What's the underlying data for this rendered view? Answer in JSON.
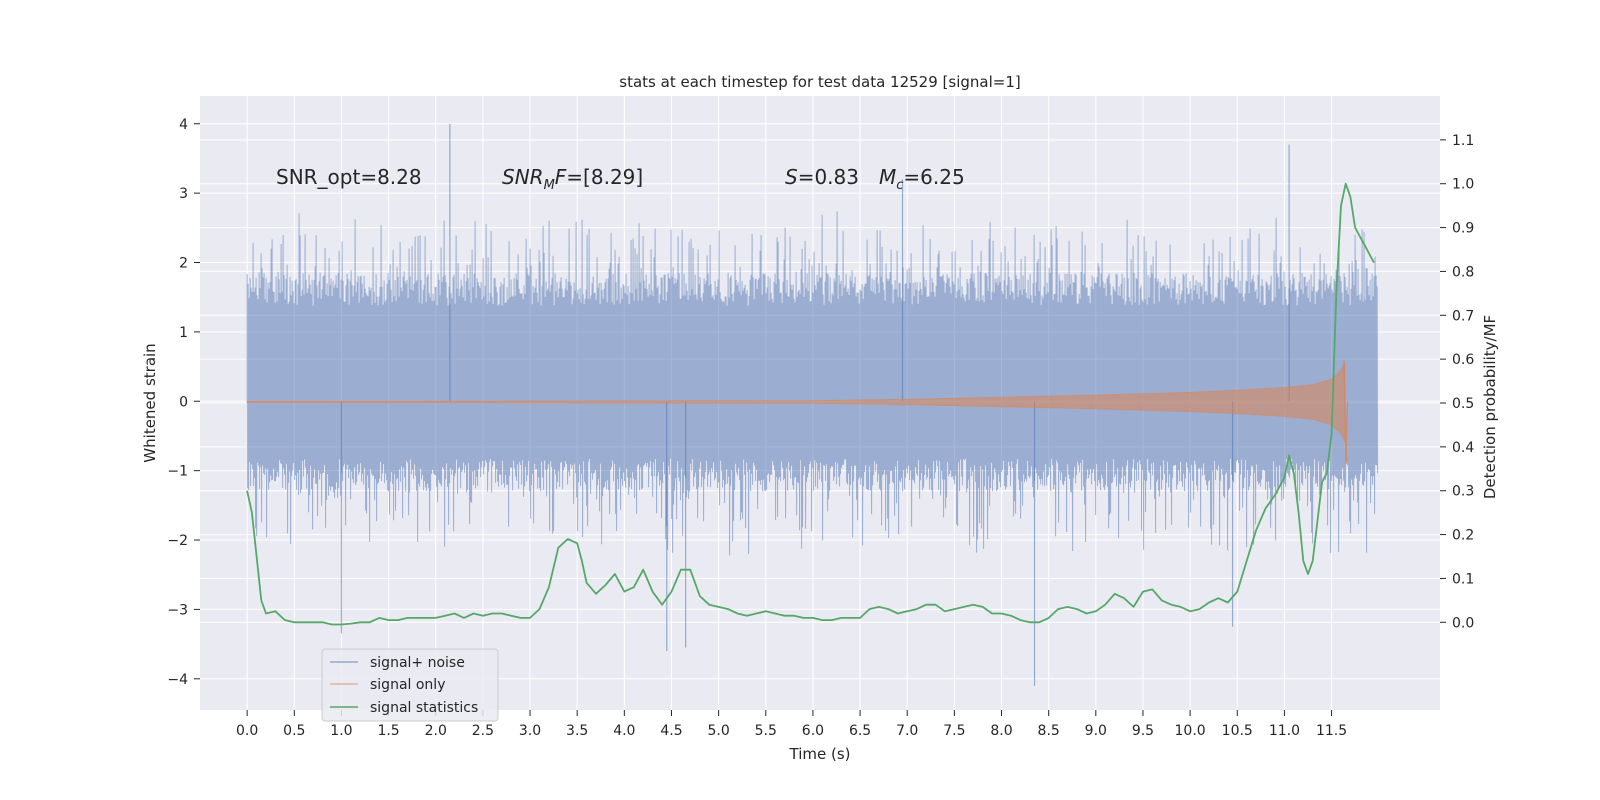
{
  "chart_data": {
    "type": "line",
    "title": "stats at each timestep for test data 12529 [signal=1]",
    "xlabel": "Time (s)",
    "ylabel": "Whitened strain",
    "y2label": "Detection probability/MF",
    "xlim": [
      -0.5,
      12.65
    ],
    "ylim": [
      -4.45,
      4.4
    ],
    "y2lim": [
      -0.2,
      1.2
    ],
    "xticks": [
      "0.0",
      "0.5",
      "1.0",
      "1.5",
      "2.0",
      "2.5",
      "3.0",
      "3.5",
      "4.0",
      "4.5",
      "5.0",
      "5.5",
      "6.0",
      "6.5",
      "7.0",
      "7.5",
      "8.0",
      "8.5",
      "9.0",
      "9.5",
      "10.0",
      "10.5",
      "11.0",
      "11.5"
    ],
    "yticks": [
      "4",
      "3",
      "2",
      "1",
      "0",
      "−1",
      "−2",
      "−3",
      "−4"
    ],
    "y2ticks": [
      "1.1",
      "1.0",
      "0.9",
      "0.8",
      "0.7",
      "0.6",
      "0.5",
      "0.4",
      "0.3",
      "0.2",
      "0.1",
      "0.0"
    ],
    "annotations": {
      "snr_opt": "SNR_opt=8.28",
      "snr_mf_sym": "SNR",
      "snr_mf_sub": "M",
      "snr_mf_rest": "F=[8.29]",
      "s_sym": "S",
      "s_val": "=0.83",
      "mc_sym": "M",
      "mc_sub": "c",
      "mc_val": "=6.25"
    },
    "legend": {
      "location": "lower-left",
      "entries": [
        "signal+ noise",
        "signal only",
        "signal statistics"
      ]
    },
    "colors": {
      "noise": "#4c72b0",
      "signal": "#dd8452",
      "stats": "#55a868",
      "background": "#eaeaf2",
      "grid": "#ffffff"
    },
    "series": [
      {
        "name": "signal+ noise",
        "axis": "left",
        "t_range": [
          0.0,
          11.99
        ],
        "typical_amplitude": [
          -1.3,
          1.85
        ],
        "peaks": [
          [
            2.15,
            4.0
          ],
          [
            11.05,
            3.7
          ],
          [
            6.95,
            3.2
          ],
          [
            8.35,
            -4.1
          ],
          [
            4.45,
            -3.6
          ],
          [
            4.65,
            -3.55
          ],
          [
            1.0,
            -3.35
          ],
          [
            10.45,
            -3.25
          ]
        ]
      },
      {
        "name": "signal only",
        "axis": "left",
        "t_range": [
          0.0,
          11.67
        ],
        "envelope_t": [
          0.0,
          6.0,
          7.0,
          8.0,
          9.0,
          10.0,
          10.5,
          11.0,
          11.3,
          11.5,
          11.6,
          11.65,
          11.67
        ],
        "envelope_amp": [
          0.0,
          0.01,
          0.03,
          0.06,
          0.09,
          0.13,
          0.16,
          0.2,
          0.24,
          0.32,
          0.45,
          0.6,
          0.0
        ],
        "end_spike": [
          0.6,
          -0.9
        ]
      },
      {
        "name": "signal statistics",
        "axis": "right",
        "t": [
          0.0,
          0.05,
          0.1,
          0.15,
          0.2,
          0.3,
          0.4,
          0.5,
          0.6,
          0.7,
          0.8,
          0.9,
          1.0,
          1.1,
          1.2,
          1.3,
          1.4,
          1.5,
          1.6,
          1.7,
          1.8,
          1.9,
          2.0,
          2.1,
          2.2,
          2.3,
          2.4,
          2.5,
          2.6,
          2.7,
          2.8,
          2.9,
          3.0,
          3.1,
          3.2,
          3.3,
          3.4,
          3.5,
          3.55,
          3.6,
          3.7,
          3.8,
          3.9,
          4.0,
          4.1,
          4.2,
          4.3,
          4.4,
          4.5,
          4.6,
          4.7,
          4.8,
          4.9,
          5.0,
          5.1,
          5.2,
          5.3,
          5.4,
          5.5,
          5.6,
          5.7,
          5.8,
          5.9,
          6.0,
          6.1,
          6.2,
          6.3,
          6.4,
          6.5,
          6.6,
          6.7,
          6.8,
          6.9,
          7.0,
          7.1,
          7.2,
          7.3,
          7.4,
          7.5,
          7.6,
          7.7,
          7.8,
          7.9,
          8.0,
          8.1,
          8.2,
          8.3,
          8.4,
          8.5,
          8.6,
          8.7,
          8.8,
          8.9,
          9.0,
          9.1,
          9.2,
          9.3,
          9.4,
          9.5,
          9.6,
          9.7,
          9.8,
          9.9,
          10.0,
          10.1,
          10.2,
          10.3,
          10.4,
          10.5,
          10.6,
          10.7,
          10.8,
          10.9,
          11.0,
          11.05,
          11.1,
          11.15,
          11.2,
          11.25,
          11.3,
          11.35,
          11.4,
          11.45,
          11.5,
          11.55,
          11.6,
          11.65,
          11.7,
          11.75,
          11.8,
          11.85,
          11.9,
          11.95
        ],
        "values": [
          0.3,
          0.25,
          0.15,
          0.05,
          0.02,
          0.025,
          0.005,
          0.0,
          0.0,
          0.0,
          0.0,
          -0.005,
          -0.005,
          -0.003,
          0.0,
          0.0,
          0.01,
          0.005,
          0.005,
          0.01,
          0.01,
          0.01,
          0.01,
          0.015,
          0.02,
          0.01,
          0.02,
          0.015,
          0.02,
          0.02,
          0.015,
          0.01,
          0.01,
          0.03,
          0.08,
          0.17,
          0.19,
          0.18,
          0.14,
          0.09,
          0.065,
          0.085,
          0.11,
          0.07,
          0.08,
          0.12,
          0.07,
          0.04,
          0.07,
          0.12,
          0.12,
          0.06,
          0.04,
          0.035,
          0.03,
          0.02,
          0.015,
          0.02,
          0.025,
          0.02,
          0.015,
          0.015,
          0.01,
          0.01,
          0.005,
          0.005,
          0.01,
          0.01,
          0.01,
          0.03,
          0.035,
          0.03,
          0.02,
          0.025,
          0.03,
          0.04,
          0.04,
          0.025,
          0.03,
          0.035,
          0.04,
          0.035,
          0.02,
          0.02,
          0.015,
          0.005,
          0.0,
          0.0,
          0.01,
          0.03,
          0.035,
          0.03,
          0.02,
          0.025,
          0.04,
          0.065,
          0.055,
          0.035,
          0.07,
          0.075,
          0.05,
          0.04,
          0.035,
          0.025,
          0.03,
          0.045,
          0.055,
          0.045,
          0.07,
          0.14,
          0.21,
          0.26,
          0.29,
          0.33,
          0.38,
          0.34,
          0.25,
          0.14,
          0.11,
          0.14,
          0.23,
          0.32,
          0.34,
          0.43,
          0.75,
          0.95,
          1.0,
          0.97,
          0.9,
          0.88,
          0.86,
          0.84,
          0.82
        ]
      }
    ]
  }
}
